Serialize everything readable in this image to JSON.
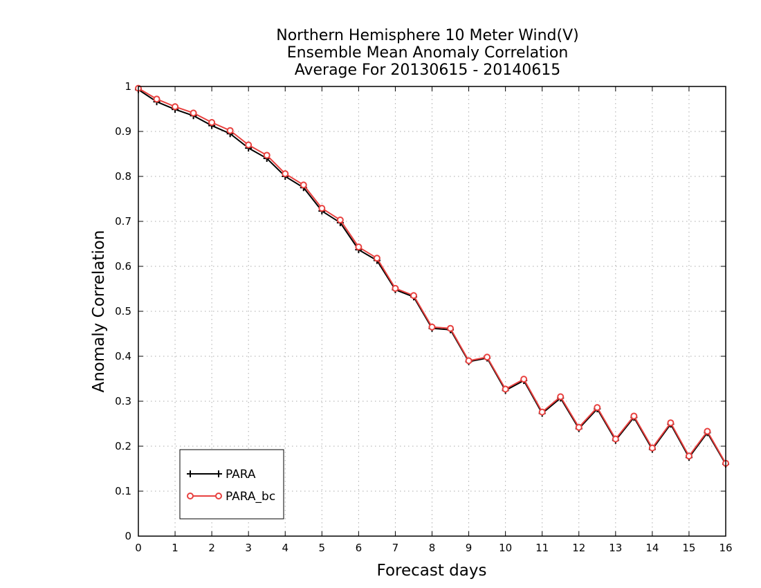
{
  "chart_data": {
    "type": "line",
    "title": [
      "Northern Hemisphere 10 Meter Wind(V)",
      "Ensemble Mean Anomaly Correlation",
      "Average For 20130615 - 20140615"
    ],
    "xlabel": "Forecast days",
    "ylabel": "Anomaly Correlation",
    "xlim": [
      0,
      16
    ],
    "ylim": [
      0,
      1
    ],
    "xticks": [
      0,
      1,
      2,
      3,
      4,
      5,
      6,
      7,
      8,
      9,
      10,
      11,
      12,
      13,
      14,
      15,
      16
    ],
    "yticks": [
      0,
      0.1,
      0.2,
      0.3,
      0.4,
      0.5,
      0.6,
      0.7,
      0.8,
      0.9,
      1
    ],
    "ytick_labels": [
      "0",
      "0.1",
      "0.2",
      "0.3",
      "0.4",
      "0.5",
      "0.6",
      "0.7",
      "0.8",
      "0.9",
      "1"
    ],
    "grid": true,
    "legend_position": "bottom-left",
    "x": [
      0,
      0.5,
      1,
      1.5,
      2,
      2.5,
      3,
      3.5,
      4,
      4.5,
      5,
      5.5,
      6,
      6.5,
      7,
      7.5,
      8,
      8.5,
      9,
      9.5,
      10,
      10.5,
      11,
      11.5,
      12,
      12.5,
      13,
      13.5,
      14,
      14.5,
      15,
      15.5,
      16
    ],
    "series": [
      {
        "name": "PARA",
        "color": "#000000",
        "marker": "plus",
        "values": [
          0.993,
          0.966,
          0.949,
          0.935,
          0.913,
          0.895,
          0.863,
          0.84,
          0.8,
          0.775,
          0.723,
          0.697,
          0.637,
          0.613,
          0.548,
          0.532,
          0.462,
          0.459,
          0.388,
          0.396,
          0.324,
          0.346,
          0.273,
          0.307,
          0.239,
          0.283,
          0.213,
          0.264,
          0.193,
          0.249,
          0.175,
          0.23,
          0.16
        ]
      },
      {
        "name": "PARA_bc",
        "color": "#e8413f",
        "marker": "circle",
        "values": [
          0.996,
          0.972,
          0.955,
          0.941,
          0.92,
          0.902,
          0.87,
          0.847,
          0.806,
          0.781,
          0.729,
          0.703,
          0.643,
          0.618,
          0.551,
          0.535,
          0.465,
          0.462,
          0.39,
          0.398,
          0.327,
          0.349,
          0.276,
          0.31,
          0.242,
          0.286,
          0.216,
          0.267,
          0.196,
          0.252,
          0.178,
          0.233,
          0.162
        ]
      }
    ]
  }
}
